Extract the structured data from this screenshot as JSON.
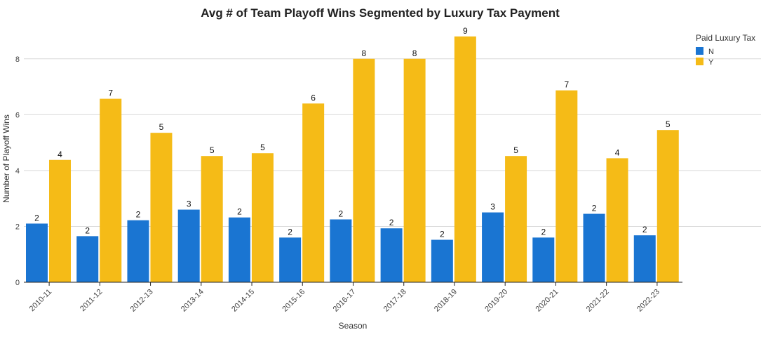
{
  "chart_data": {
    "type": "bar",
    "title": "Avg # of Team Playoff Wins Segmented by Luxury Tax Payment",
    "xlabel": "Season",
    "ylabel": "Number of Playoff Wins",
    "ylim": [
      0,
      9.1
    ],
    "yticks": [
      0,
      2,
      4,
      6,
      8
    ],
    "grid": true,
    "legend_position": "top-right",
    "legend_title": "Paid Luxury Tax",
    "categories": [
      "2010-11",
      "2011-12",
      "2012-13",
      "2013-14",
      "2014-15",
      "2015-16",
      "2016-17",
      "2017-18",
      "2018-19",
      "2019-20",
      "2020-21",
      "2021-22",
      "2022-23"
    ],
    "series": [
      {
        "name": "N",
        "color": "#1a75d2",
        "values": [
          2.1,
          1.65,
          2.22,
          2.6,
          2.32,
          1.6,
          2.25,
          1.93,
          1.52,
          2.5,
          1.6,
          2.45,
          1.68
        ],
        "labels": [
          "2",
          "2",
          "2",
          "3",
          "2",
          "2",
          "2",
          "2",
          "2",
          "3",
          "2",
          "2",
          "2"
        ]
      },
      {
        "name": "Y",
        "color": "#f5bb17",
        "values": [
          4.38,
          6.57,
          5.35,
          4.52,
          4.62,
          6.4,
          8.0,
          8.0,
          8.8,
          4.52,
          6.87,
          4.44,
          5.45
        ],
        "labels": [
          "4",
          "7",
          "5",
          "5",
          "5",
          "6",
          "8",
          "8",
          "9",
          "5",
          "7",
          "4",
          "5"
        ]
      }
    ]
  }
}
